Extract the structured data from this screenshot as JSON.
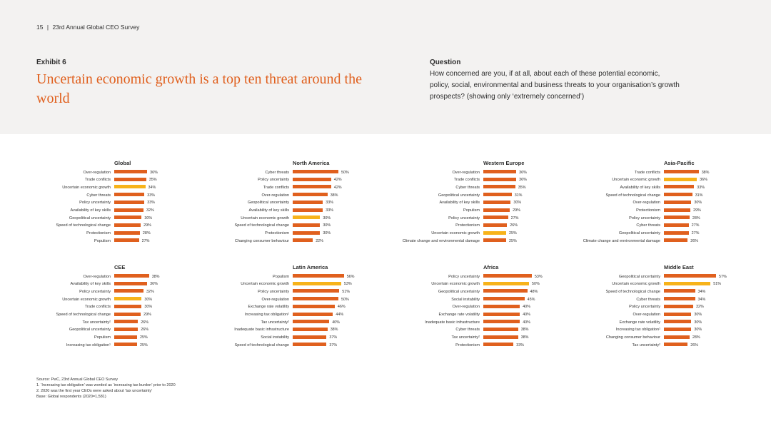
{
  "header": {
    "page_number": "15",
    "separator": "|",
    "report_title": "23rd Annual Global CEO Survey",
    "exhibit_label": "Exhibit 6",
    "title": "Uncertain economic growth is a top ten threat around the world",
    "question_label": "Question",
    "question_text": "How concerned are you, if at all, about each of these potential economic, policy, social, environmental and business threats to your organisation’s growth prospects? (showing only ‘extremely concerned’)"
  },
  "colors": {
    "accent": "#e0601e",
    "highlight": "#f7b31a",
    "band": "#f3f2f1"
  },
  "chart_data": [
    {
      "type": "bar",
      "title": "Global",
      "highlight": "Uncertain economic growth",
      "xlim": [
        0,
        60
      ],
      "categories": [
        "Over-regulation",
        "Trade conflicts",
        "Uncertain economic growth",
        "Cyber threats",
        "Policy uncertainty",
        "Availability of key skills",
        "Geopolitical uncertainty",
        "Speed of technological change",
        "Protectionism",
        "Populism"
      ],
      "values": [
        36,
        35,
        34,
        33,
        33,
        32,
        30,
        29,
        28,
        27
      ]
    },
    {
      "type": "bar",
      "title": "North America",
      "highlight": "Uncertain economic growth",
      "xlim": [
        0,
        60
      ],
      "categories": [
        "Cyber threats",
        "Policy uncertainty",
        "Trade conflicts",
        "Over-regulation",
        "Geopolitical uncertainty",
        "Availability of key skills",
        "Uncertain economic growth",
        "Speed of technological change",
        "Protectionism",
        "Changing consumer behaviour"
      ],
      "values": [
        50,
        42,
        42,
        38,
        33,
        33,
        30,
        30,
        30,
        22
      ]
    },
    {
      "type": "bar",
      "title": "Western Europe",
      "highlight": "Uncertain economic growth",
      "xlim": [
        0,
        60
      ],
      "categories": [
        "Over-regulation",
        "Trade conflicts",
        "Cyber threats",
        "Geopolitical uncertainty",
        "Availability of key skills",
        "Populism",
        "Policy uncertainty",
        "Protectionism",
        "Uncertain economic growth",
        "Climate change and environmental damage"
      ],
      "values": [
        36,
        36,
        35,
        31,
        30,
        29,
        27,
        26,
        25,
        25
      ]
    },
    {
      "type": "bar",
      "title": "Asia-Pacific",
      "highlight": "Uncertain economic growth",
      "xlim": [
        0,
        60
      ],
      "categories": [
        "Trade conflicts",
        "Uncertain economic growth",
        "Availability of key skills",
        "Speed of technological change",
        "Over-regulation",
        "Protectionism",
        "Policy uncertainty",
        "Cyber threats",
        "Geopolitical uncertainty",
        "Climate change and environmental damage"
      ],
      "values": [
        38,
        36,
        33,
        31,
        30,
        29,
        28,
        27,
        27,
        26
      ]
    },
    {
      "type": "bar",
      "title": "CEE",
      "highlight": "Uncertain economic growth",
      "xlim": [
        0,
        60
      ],
      "categories": [
        "Over-regulation",
        "Availability of key skills",
        "Policy uncertainty",
        "Uncertain economic growth",
        "Trade conflicts",
        "Speed of technological change",
        "Tax uncertainty²",
        "Geopolitical uncertainty",
        "Populism",
        "Increasing tax obligation¹"
      ],
      "values": [
        38,
        36,
        32,
        30,
        30,
        29,
        26,
        26,
        25,
        25
      ]
    },
    {
      "type": "bar",
      "title": "Latin America",
      "highlight": "Uncertain economic growth",
      "xlim": [
        0,
        60
      ],
      "categories": [
        "Populism",
        "Uncertain economic growth",
        "Policy uncertainty",
        "Over-regulation",
        "Exchange rate volatility",
        "Increasing tax obligation¹",
        "Tax uncertainty²",
        "Inadequate basic infrastructure",
        "Social instability",
        "Speed of technological change"
      ],
      "values": [
        56,
        53,
        51,
        50,
        46,
        44,
        40,
        38,
        37,
        37
      ]
    },
    {
      "type": "bar",
      "title": "Africa",
      "highlight": "Uncertain economic growth",
      "xlim": [
        0,
        60
      ],
      "categories": [
        "Policy uncertainty",
        "Uncertain economic growth",
        "Geopolitical uncertainty",
        "Social instability",
        "Over-regulation",
        "Exchange rate volatility",
        "Inadequate basic infrastructure",
        "Cyber threats",
        "Tax uncertainty²",
        "Protectionism"
      ],
      "values": [
        53,
        50,
        48,
        45,
        40,
        40,
        40,
        38,
        38,
        33
      ]
    },
    {
      "type": "bar",
      "title": "Middle East",
      "highlight": "Uncertain economic growth",
      "xlim": [
        0,
        60
      ],
      "categories": [
        "Geopolitical uncertainty",
        "Uncertain economic growth",
        "Speed of technological change",
        "Cyber threats",
        "Policy uncertainty",
        "Over-regulation",
        "Exchange rate volatility",
        "Increasing tax obligation¹",
        "Changing consumer behaviour",
        "Tax uncertainty²"
      ],
      "values": [
        57,
        51,
        34,
        34,
        32,
        30,
        30,
        30,
        28,
        26
      ]
    }
  ],
  "footnotes": {
    "source": "Source: PwC, 23rd Annual Global CEO Survey",
    "note1": "1. ‘Increasing tax obligation’ was worded as ‘increasing tax burden’ prior to 2020",
    "note2": "2. 2020 was the first year CEOs were asked about ‘tax uncertainty’",
    "base": "Base: Global respondents (2020=1,581)"
  }
}
